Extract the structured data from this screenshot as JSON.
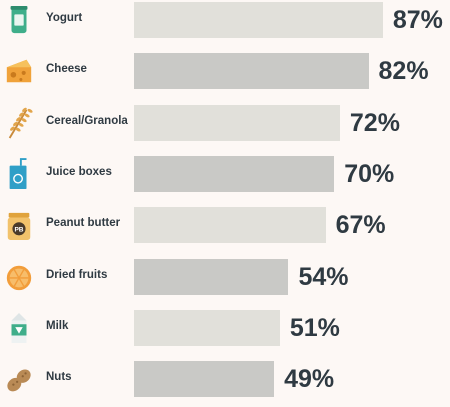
{
  "chart_data": {
    "type": "bar",
    "orientation": "horizontal",
    "categories": [
      "Yogurt",
      "Cheese",
      "Cereal/Granola",
      "Juice boxes",
      "Peanut butter",
      "Dried fruits",
      "Milk",
      "Nuts"
    ],
    "values": [
      87,
      82,
      72,
      70,
      67,
      54,
      51,
      49
    ],
    "value_labels": [
      "87%",
      "82%",
      "72%",
      "70%",
      "67%",
      "54%",
      "51%",
      "49%"
    ],
    "icons": [
      "yogurt-icon",
      "cheese-icon",
      "wheat-icon",
      "juice-box-icon",
      "peanut-butter-icon",
      "orange-slice-icon",
      "milk-carton-icon",
      "peanut-icon"
    ],
    "title": "",
    "xlabel": "",
    "ylabel": "",
    "xlim": [
      0,
      100
    ],
    "grid": false,
    "legend": "none",
    "colors": {
      "background": "#fdf8f5",
      "bar_light": "#e1e0da",
      "bar_dark": "#c9c9c6",
      "text": "#2f3a42"
    }
  }
}
